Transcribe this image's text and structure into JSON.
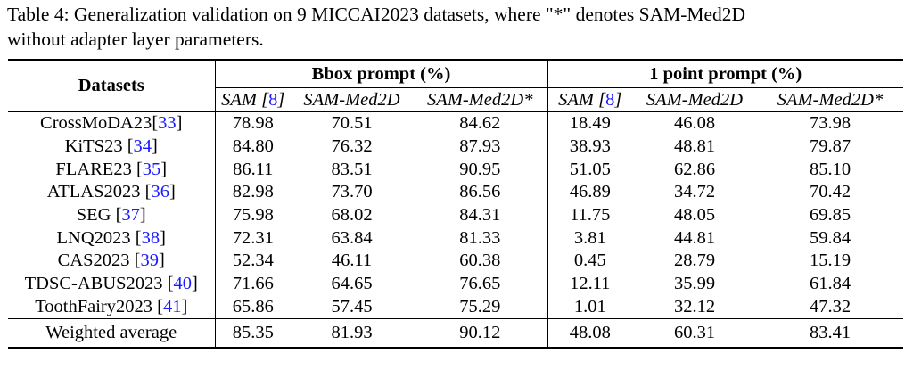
{
  "caption": {
    "line1": "Table 4: Generalization validation on 9 MICCAI2023 datasets, where \"*\" denotes SAM-Med2D",
    "line2": "without adapter layer parameters."
  },
  "header": {
    "datasets_label": "Datasets",
    "group1": "Bbox prompt (%)",
    "group2": "1 point prompt (%)",
    "sub": [
      {
        "text": "SAM",
        "cite": "8"
      },
      {
        "text": "SAM-Med2D"
      },
      {
        "text": "SAM-Med2D*"
      },
      {
        "text": "SAM",
        "cite": "8"
      },
      {
        "text": "SAM-Med2D"
      },
      {
        "text": "SAM-Med2D*"
      }
    ]
  },
  "rows": [
    {
      "name": "CrossMoDA23",
      "cite": "33",
      "space": false,
      "values": [
        "78.98",
        "70.51",
        "84.62",
        "18.49",
        "46.08",
        "73.98"
      ]
    },
    {
      "name": "KiTS23",
      "cite": "34",
      "space": true,
      "values": [
        "84.80",
        "76.32",
        "87.93",
        "38.93",
        "48.81",
        "79.87"
      ]
    },
    {
      "name": "FLARE23",
      "cite": "35",
      "space": true,
      "values": [
        "86.11",
        "83.51",
        "90.95",
        "51.05",
        "62.86",
        "85.10"
      ]
    },
    {
      "name": "ATLAS2023",
      "cite": "36",
      "space": true,
      "values": [
        "82.98",
        "73.70",
        "86.56",
        "46.89",
        "34.72",
        "70.42"
      ]
    },
    {
      "name": "SEG",
      "cite": "37",
      "space": true,
      "values": [
        "75.98",
        "68.02",
        "84.31",
        "11.75",
        "48.05",
        "69.85"
      ]
    },
    {
      "name": "LNQ2023",
      "cite": "38",
      "space": true,
      "values": [
        "72.31",
        "63.84",
        "81.33",
        "3.81",
        "44.81",
        "59.84"
      ]
    },
    {
      "name": "CAS2023",
      "cite": "39",
      "space": true,
      "values": [
        "52.34",
        "46.11",
        "60.38",
        "0.45",
        "28.79",
        "15.19"
      ]
    },
    {
      "name": "TDSC-ABUS2023",
      "cite": "40",
      "space": true,
      "values": [
        "71.66",
        "64.65",
        "76.65",
        "12.11",
        "35.99",
        "61.84"
      ]
    },
    {
      "name": "ToothFairy2023",
      "cite": "41",
      "space": true,
      "values": [
        "65.86",
        "57.45",
        "75.29",
        "1.01",
        "32.12",
        "47.32"
      ]
    }
  ],
  "average": {
    "name": "Weighted average",
    "values": [
      "85.35",
      "81.93",
      "90.12",
      "48.08",
      "60.31",
      "83.41"
    ]
  }
}
